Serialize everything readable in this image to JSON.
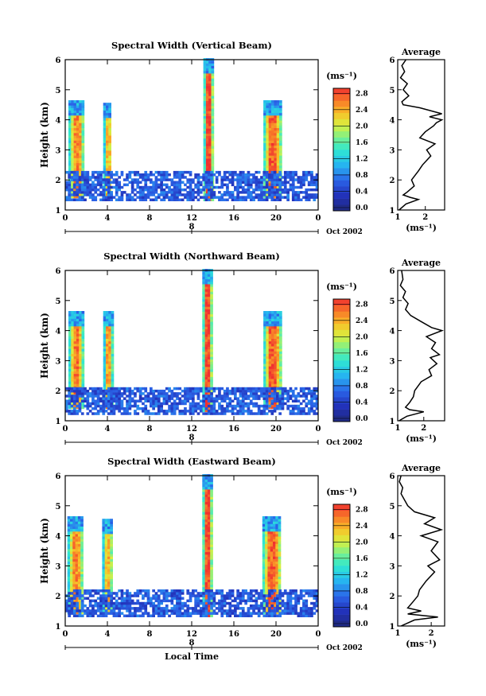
{
  "chart_data": [
    {
      "type": "heatmap",
      "title": "Spectral Width (Vertical Beam)",
      "ylabel": "Height (km)",
      "xlim": [
        0,
        24
      ],
      "ylim": [
        1,
        6
      ],
      "x_ticks": [
        "0",
        "4",
        "8",
        "12",
        "16",
        "20",
        "0"
      ],
      "y_ticks": [
        "1",
        "2",
        "3",
        "4",
        "5",
        "6"
      ],
      "date_marker": "8",
      "date_label": "Oct 2002",
      "colorbar": {
        "unit_label": "(ms⁻¹)",
        "min": 0,
        "max": 3.0,
        "ticks": [
          "0.0",
          "0.4",
          "0.8",
          "1.2",
          "1.6",
          "2.0",
          "2.4",
          "2.8"
        ]
      },
      "features": [
        {
          "x": [
            0.3,
            1.7
          ],
          "y": [
            1.4,
            4.6
          ],
          "level": 2.6,
          "label": "convective column"
        },
        {
          "x": [
            3.6,
            4.3
          ],
          "y": [
            1.4,
            4.5
          ],
          "level": 2.4,
          "label": "convective column"
        },
        {
          "x": [
            13.1,
            13.9
          ],
          "y": [
            1.3,
            6.0
          ],
          "level": 2.9,
          "label": "convective column"
        },
        {
          "x": [
            18.8,
            20.4
          ],
          "y": [
            1.4,
            4.6
          ],
          "level": 2.8,
          "label": "convective column"
        },
        {
          "x": [
            0.0,
            24.0
          ],
          "y": [
            1.3,
            2.3
          ],
          "level": 0.7,
          "label": "boundary layer"
        }
      ],
      "average_profile": {
        "title": "Average",
        "xlabel": "(ms⁻¹)",
        "x_ticks": [
          "1",
          "2"
        ],
        "xlim": [
          1,
          2.7
        ],
        "height": [
          1.0,
          1.2,
          1.35,
          1.42,
          1.5,
          1.6,
          1.8,
          2.0,
          2.3,
          2.5,
          2.8,
          3.0,
          3.2,
          3.4,
          3.6,
          3.8,
          3.9,
          4.0,
          4.1,
          4.2,
          4.4,
          4.5,
          4.6,
          4.8,
          5.0,
          5.2,
          5.4,
          5.6,
          5.8,
          6.0
        ],
        "width": [
          1.05,
          1.3,
          1.75,
          1.45,
          1.2,
          1.35,
          1.6,
          1.5,
          1.75,
          1.9,
          2.2,
          2.05,
          2.35,
          1.8,
          2.0,
          2.3,
          2.4,
          2.6,
          2.15,
          2.6,
          1.8,
          1.2,
          1.15,
          1.4,
          1.2,
          1.35,
          1.1,
          1.25,
          1.15,
          1.3
        ]
      }
    },
    {
      "type": "heatmap",
      "title": "Spectral Width (Northward Beam)",
      "ylabel": "Height (km)",
      "xlim": [
        0,
        24
      ],
      "ylim": [
        1,
        6
      ],
      "x_ticks": [
        "0",
        "4",
        "8",
        "12",
        "16",
        "20",
        "0"
      ],
      "y_ticks": [
        "1",
        "2",
        "3",
        "4",
        "5",
        "6"
      ],
      "date_marker": "8",
      "date_label": "Oct 2002",
      "colorbar": {
        "unit_label": "(ms⁻¹)",
        "min": 0,
        "max": 3.0,
        "ticks": [
          "0.0",
          "0.4",
          "0.8",
          "1.2",
          "1.6",
          "2.0",
          "2.4",
          "2.8"
        ]
      },
      "features": [
        {
          "x": [
            0.3,
            1.6
          ],
          "y": [
            1.4,
            4.6
          ],
          "level": 2.7,
          "label": "convective column"
        },
        {
          "x": [
            3.6,
            4.4
          ],
          "y": [
            1.4,
            4.6
          ],
          "level": 2.5,
          "label": "convective column"
        },
        {
          "x": [
            13.0,
            13.8
          ],
          "y": [
            1.3,
            6.0
          ],
          "level": 2.9,
          "label": "convective column"
        },
        {
          "x": [
            18.8,
            20.4
          ],
          "y": [
            1.4,
            4.6
          ],
          "level": 2.8,
          "label": "convective column"
        },
        {
          "x": [
            0.0,
            24.0
          ],
          "y": [
            1.2,
            2.1
          ],
          "level": 0.7,
          "label": "boundary layer"
        }
      ],
      "average_profile": {
        "title": "Average",
        "xlabel": "(ms⁻¹)",
        "x_ticks": [
          "1",
          "2"
        ],
        "xlim": [
          1,
          2.8
        ],
        "height": [
          1.0,
          1.15,
          1.3,
          1.37,
          1.45,
          1.6,
          1.8,
          2.0,
          2.3,
          2.5,
          2.7,
          2.9,
          3.1,
          3.2,
          3.4,
          3.6,
          3.8,
          4.0,
          4.1,
          4.3,
          4.5,
          4.7,
          4.9,
          5.1,
          5.3,
          5.5,
          5.7,
          6.0
        ],
        "width": [
          1.05,
          1.35,
          2.0,
          1.45,
          1.3,
          1.45,
          1.6,
          1.65,
          1.9,
          2.3,
          2.2,
          2.5,
          2.25,
          2.6,
          2.3,
          2.45,
          2.1,
          2.7,
          2.3,
          1.9,
          1.5,
          1.3,
          1.4,
          1.2,
          1.3,
          1.1,
          1.2,
          1.15
        ]
      }
    },
    {
      "type": "heatmap",
      "title": "Spectral Width (Eastward Beam)",
      "ylabel": "Height (km)",
      "xlabel": "Local Time",
      "xlim": [
        0,
        24
      ],
      "ylim": [
        1,
        6
      ],
      "x_ticks": [
        "0",
        "4",
        "8",
        "12",
        "16",
        "20",
        "0"
      ],
      "y_ticks": [
        "1",
        "2",
        "3",
        "4",
        "5",
        "6"
      ],
      "date_marker": "8",
      "date_label": "Oct 2002",
      "colorbar": {
        "unit_label": "(ms⁻¹)",
        "min": 0,
        "max": 3.0,
        "ticks": [
          "0.0",
          "0.4",
          "0.8",
          "1.2",
          "1.6",
          "2.0",
          "2.4",
          "2.8"
        ]
      },
      "features": [
        {
          "x": [
            0.2,
            1.6
          ],
          "y": [
            1.4,
            4.6
          ],
          "level": 2.6,
          "label": "convective column"
        },
        {
          "x": [
            3.5,
            4.4
          ],
          "y": [
            1.4,
            4.5
          ],
          "level": 2.4,
          "label": "convective column"
        },
        {
          "x": [
            13.0,
            13.8
          ],
          "y": [
            1.3,
            6.0
          ],
          "level": 2.9,
          "label": "convective column"
        },
        {
          "x": [
            18.7,
            20.4
          ],
          "y": [
            1.4,
            4.6
          ],
          "level": 2.8,
          "label": "convective column"
        },
        {
          "x": [
            0.0,
            24.0
          ],
          "y": [
            1.3,
            2.2
          ],
          "level": 0.7,
          "label": "boundary layer"
        }
      ],
      "average_profile": {
        "title": "Average",
        "xlabel": "(ms⁻¹)",
        "x_ticks": [
          "1",
          "2"
        ],
        "xlim": [
          1,
          2.4
        ],
        "height": [
          1.0,
          1.2,
          1.3,
          1.4,
          1.5,
          1.6,
          1.8,
          2.0,
          2.2,
          2.5,
          2.8,
          3.0,
          3.2,
          3.5,
          3.8,
          4.0,
          4.2,
          4.4,
          4.6,
          4.8,
          5.0,
          5.2,
          5.4,
          5.6,
          5.8,
          6.0
        ],
        "width": [
          1.1,
          1.5,
          2.2,
          1.3,
          1.7,
          1.3,
          1.45,
          1.6,
          1.65,
          1.85,
          2.1,
          1.9,
          2.25,
          2.0,
          2.2,
          1.7,
          2.3,
          1.8,
          2.1,
          1.5,
          1.3,
          1.2,
          1.1,
          1.15,
          1.05,
          1.1
        ]
      }
    }
  ]
}
